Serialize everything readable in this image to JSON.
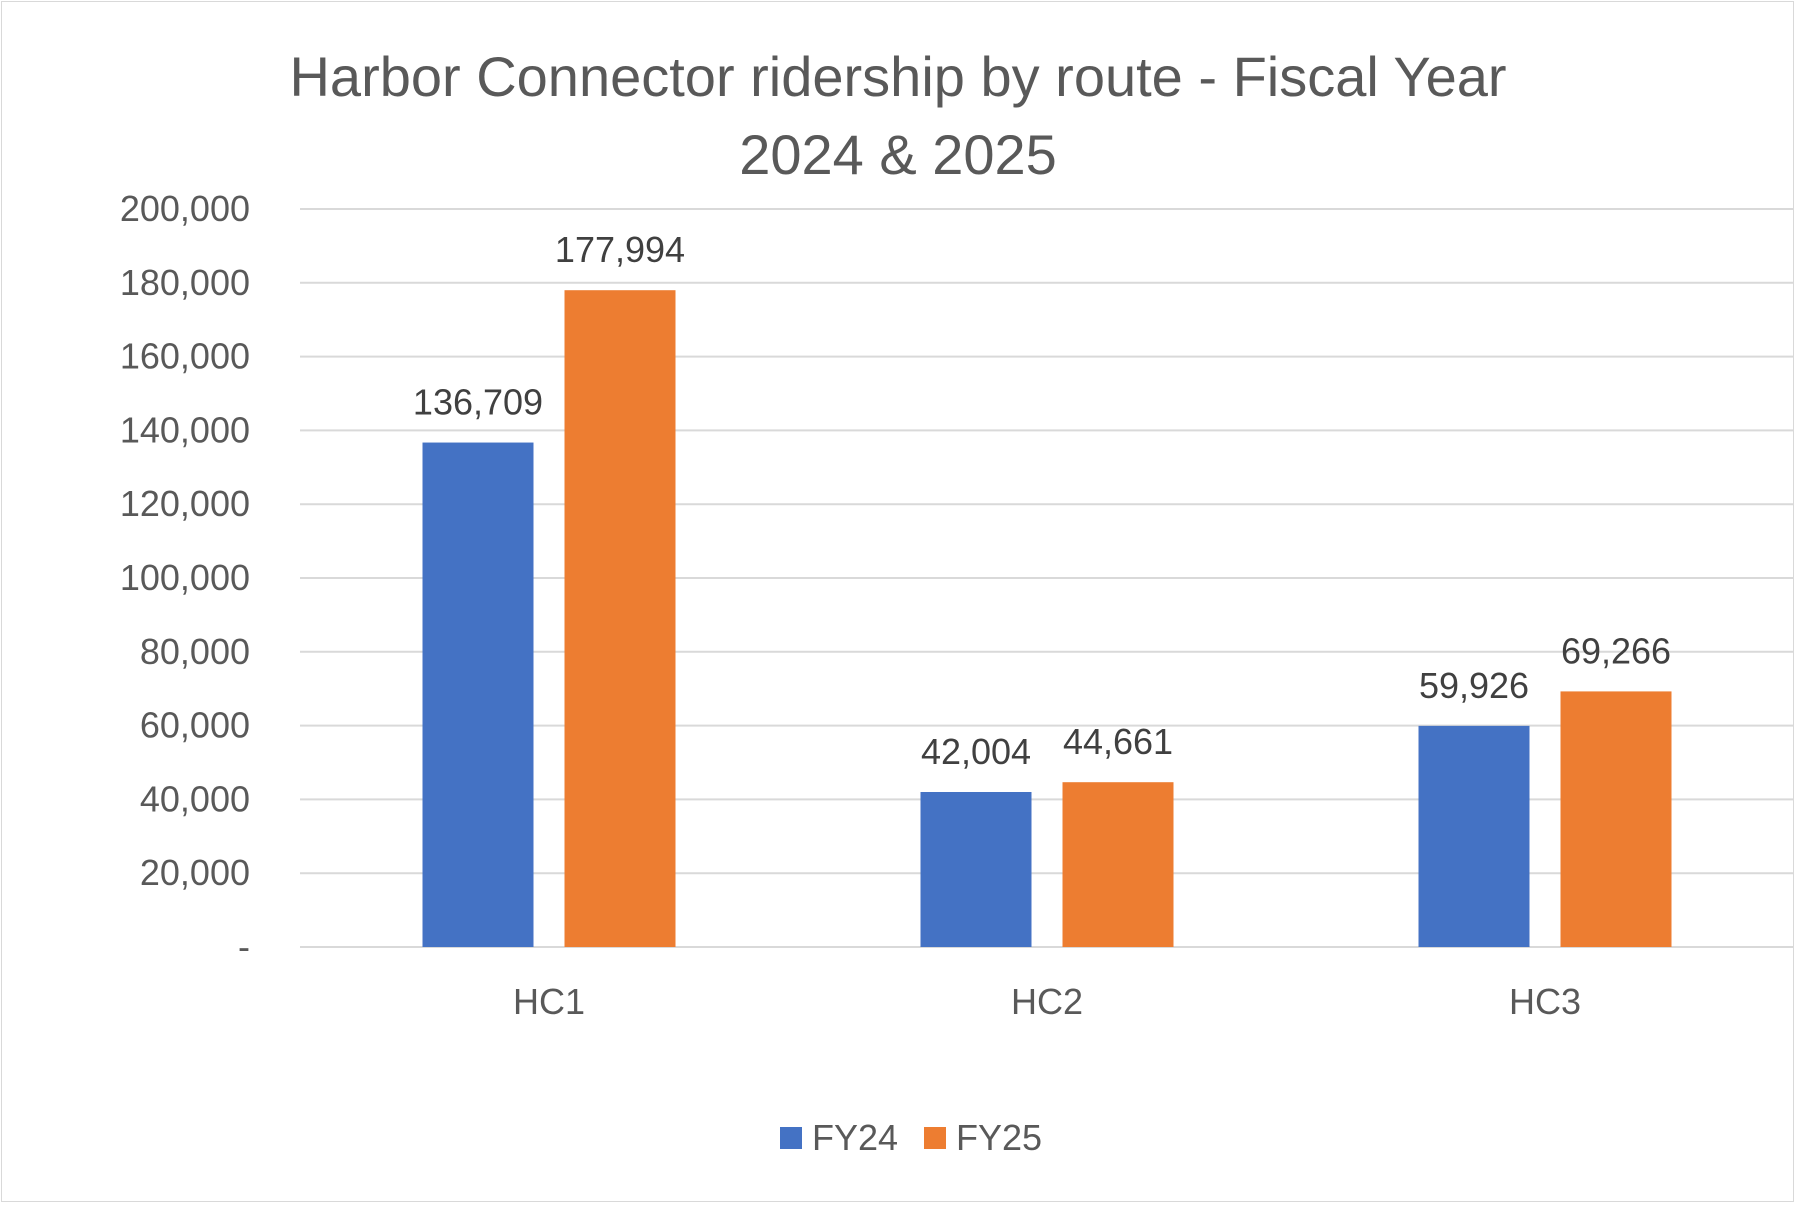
{
  "chart_data": {
    "type": "bar",
    "title_lines": [
      "Harbor Connector ridership by route - Fiscal Year",
      "2024 & 2025"
    ],
    "categories": [
      "HC1",
      "HC2",
      "HC3"
    ],
    "series": [
      {
        "name": "FY24",
        "values": [
          136709,
          42004,
          59926
        ],
        "labels": [
          "136,709",
          "42,004",
          "59,926"
        ],
        "color": "#4472C4"
      },
      {
        "name": "FY25",
        "values": [
          177994,
          44661,
          69266
        ],
        "labels": [
          "177,994",
          "44,661",
          "69,266"
        ],
        "color": "#ED7D31"
      }
    ],
    "ylim": [
      0,
      200000
    ],
    "yticks": [
      0,
      20000,
      40000,
      60000,
      80000,
      100000,
      120000,
      140000,
      160000,
      180000,
      200000
    ],
    "ytick_labels": [
      "-",
      "20,000",
      "40,000",
      "60,000",
      "80,000",
      "100,000",
      "120,000",
      "140,000",
      "160,000",
      "180,000",
      "200,000"
    ],
    "grid": true,
    "gridline_color": "#d9d9d9",
    "legend_position": "bottom"
  }
}
